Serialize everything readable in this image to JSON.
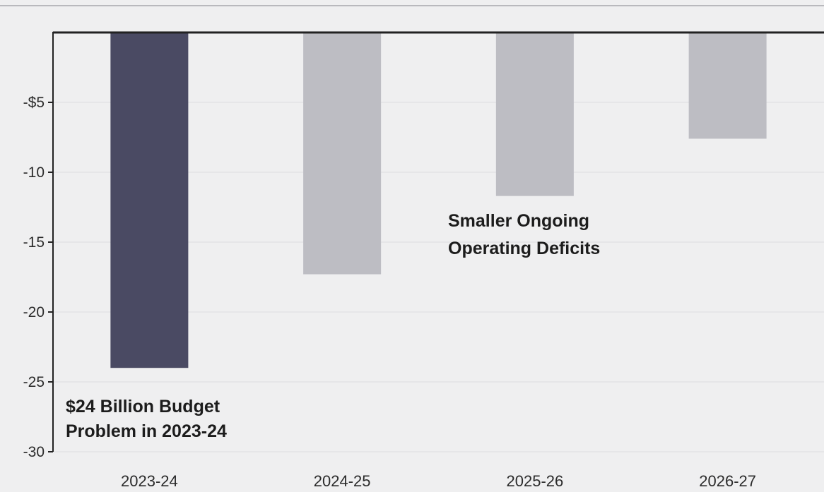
{
  "chart_data": {
    "type": "bar",
    "title": "",
    "xlabel": "",
    "ylabel": "",
    "categories": [
      "2023-24",
      "2024-25",
      "2025-26",
      "2026-27"
    ],
    "values": [
      -24,
      -17.3,
      -11.7,
      -7.6
    ],
    "ylim": [
      -30,
      0
    ],
    "y_ticks": [
      -5,
      -10,
      -15,
      -20,
      -25,
      -30
    ],
    "y_tick_labels": [
      "-$5",
      "-10",
      "-15",
      "-20",
      "-25",
      "-30"
    ],
    "grid": true,
    "colors": {
      "highlight": "#4a4a63",
      "bar": "#bdbdc3",
      "grid": "#e6e6e8",
      "axis": "#222222",
      "background": "#efeff0"
    },
    "bar_colors": [
      "#4a4a63",
      "#bdbdc3",
      "#bdbdc3",
      "#bdbdc3"
    ],
    "annotations": [
      {
        "lines": [
          "$24 Billion Budget",
          "Problem in 2023-24"
        ]
      },
      {
        "lines": [
          "Smaller Ongoing",
          "Operating Deficits"
        ]
      }
    ]
  }
}
